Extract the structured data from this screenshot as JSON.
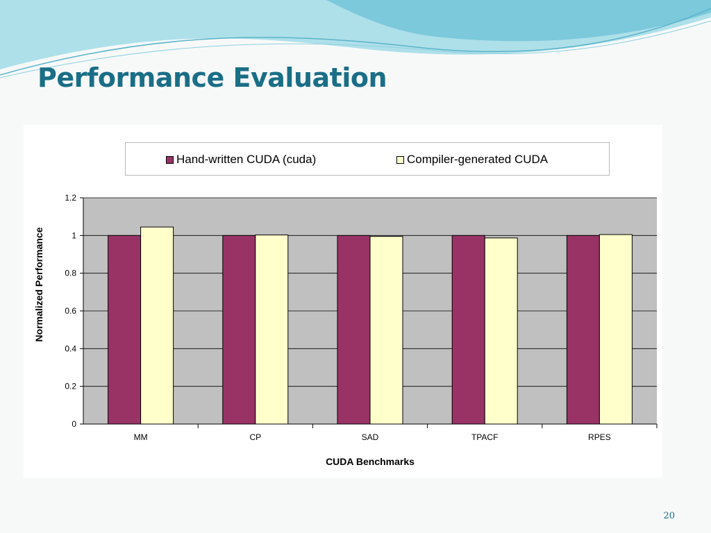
{
  "slide": {
    "title": "Performance Evaluation",
    "page_number": "20"
  },
  "colors": {
    "title": "#1a6e86",
    "series_a": "#993366",
    "series_b": "#ffffcc",
    "plot_bg": "#c0c0c0"
  },
  "chart_data": {
    "type": "bar",
    "title": "",
    "xlabel": "CUDA Benchmarks",
    "ylabel": "Normalized Performance",
    "categories": [
      "MM",
      "CP",
      "SAD",
      "TPACF",
      "RPES"
    ],
    "series": [
      {
        "name": "Hand-written CUDA (cuda)",
        "values": [
          1.0,
          1.0,
          1.0,
          1.0,
          1.0
        ]
      },
      {
        "name": "Compiler-generated CUDA",
        "values": [
          1.045,
          1.003,
          0.995,
          0.987,
          1.005
        ]
      }
    ],
    "ylim": [
      0,
      1.2
    ],
    "yticks": [
      "0",
      "0.2",
      "0.4",
      "0.6",
      "0.8",
      "1",
      "1.2"
    ],
    "grid": true,
    "legend": "top"
  }
}
